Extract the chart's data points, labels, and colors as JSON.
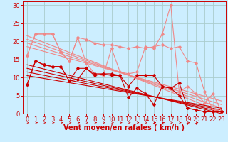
{
  "background_color": "#cceeff",
  "grid_color": "#aacccc",
  "xlabel": "Vent moyen/en rafales ( km/h )",
  "xlim": [
    -0.5,
    23.5
  ],
  "ylim": [
    0,
    31
  ],
  "yticks": [
    0,
    5,
    10,
    15,
    20,
    25,
    30
  ],
  "xticks": [
    0,
    1,
    2,
    3,
    4,
    5,
    6,
    7,
    8,
    9,
    10,
    11,
    12,
    13,
    14,
    15,
    16,
    17,
    18,
    19,
    20,
    21,
    22,
    23
  ],
  "light_color": "#f08888",
  "dark_color": "#cc0000",
  "light_straight_lines": [
    [
      [
        0,
        23
      ],
      [
        21.5,
        0.5
      ]
    ],
    [
      [
        0,
        23
      ],
      [
        20.5,
        1.5
      ]
    ],
    [
      [
        0,
        23
      ],
      [
        19.5,
        2.5
      ]
    ],
    [
      [
        0,
        23
      ],
      [
        18.5,
        3.5
      ]
    ]
  ],
  "dark_straight_lines": [
    [
      [
        0,
        23
      ],
      [
        13.5,
        0.0
      ]
    ],
    [
      [
        0,
        23
      ],
      [
        12.5,
        0.5
      ]
    ],
    [
      [
        0,
        23
      ],
      [
        11.5,
        1.0
      ]
    ],
    [
      [
        0,
        23
      ],
      [
        10.5,
        1.5
      ]
    ]
  ],
  "light_jagged": [
    [
      16.0,
      22.0,
      22.0,
      22.0,
      17.0,
      14.5,
      21.0,
      20.5,
      19.5,
      19.0,
      19.0,
      18.5,
      18.0,
      18.5,
      18.0,
      18.5,
      19.0,
      18.0,
      18.5,
      14.5,
      14.0,
      6.0,
      1.0,
      0.5
    ],
    [
      16.0,
      22.0,
      22.0,
      22.0,
      17.0,
      14.5,
      21.0,
      14.0,
      11.0,
      10.5,
      18.0,
      11.5,
      11.0,
      11.5,
      18.5,
      18.0,
      22.0,
      30.0,
      6.0,
      7.5,
      5.5,
      3.0,
      5.5,
      0.5
    ]
  ],
  "dark_jagged": [
    [
      8.0,
      14.5,
      13.5,
      13.0,
      13.0,
      9.0,
      12.5,
      12.5,
      11.0,
      11.0,
      10.5,
      10.5,
      7.5,
      10.5,
      10.5,
      10.5,
      7.5,
      7.0,
      8.5,
      1.5,
      1.0,
      0.5,
      0.5,
      0.5
    ],
    [
      8.0,
      14.5,
      13.5,
      13.0,
      13.0,
      9.0,
      9.5,
      12.5,
      10.5,
      11.0,
      11.0,
      10.5,
      4.5,
      7.0,
      5.5,
      2.5,
      7.5,
      7.0,
      5.0,
      1.5,
      1.0,
      0.5,
      0.5,
      0.5
    ]
  ],
  "xlabel_fontsize": 7,
  "tick_fontsize": 6
}
